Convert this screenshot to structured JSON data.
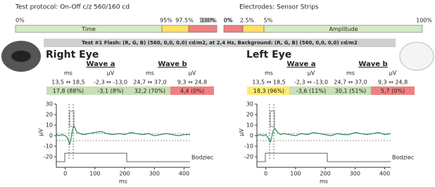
{
  "header": {
    "protocol": "Test protocol: On-Off c/z 560/160 cd",
    "electrodes": "Electrodes: Sensor Strips"
  },
  "scales": [
    {
      "start": "0%",
      "end": "100%",
      "label": "Time",
      "marks": [
        "95%",
        "97.5%",
        "100%"
      ]
    },
    {
      "start": "0%",
      "end": "100%",
      "label": "Amplitude",
      "marks": [
        "0%",
        "2.5%",
        "5%"
      ]
    }
  ],
  "test_title": "Test #1 Flash: (R, G, B) (560, 0,0, 0,0) cd/m2, at 2,4 Hz, Background: (R, G, B) (560, 0,0, 0,0) cd/m2",
  "eyes": [
    {
      "title": "Right Eye",
      "wave_a": "Wave a",
      "wave_b": "Wave b",
      "units": [
        "ms",
        "µV",
        "ms",
        "µV"
      ],
      "ranges": [
        "13,5 ↔ 18,5",
        "-2,3 ↔ -13,0",
        "24,7 ↔ 37,0",
        "9,3 ↔ 24,8"
      ],
      "results": [
        {
          "text": "17,8 (88%)",
          "color": "#c6e0b4"
        },
        {
          "text": "-3,1 (8%)",
          "color": "#c6e0b4"
        },
        {
          "text": "32,2 (70%)",
          "color": "#c6e0b4"
        },
        {
          "text": "4,4 (0%)",
          "color": "#f08080"
        }
      ],
      "plot": {
        "type": "line",
        "ylabel": "µV",
        "xlabel": "ms",
        "stimulus_label": "Bodziec",
        "color": "#2e8b57",
        "xlim": [
          -30,
          420
        ],
        "ylim": [
          -30,
          30
        ],
        "xticks": [
          0,
          100,
          200,
          300,
          400
        ],
        "yticks": [
          30,
          20,
          10,
          0,
          -10,
          -20
        ],
        "x": [
          -30,
          -20,
          -10,
          0,
          5,
          10,
          15,
          20,
          25,
          30,
          35,
          40,
          50,
          60,
          80,
          100,
          120,
          140,
          160,
          180,
          200,
          220,
          240,
          260,
          280,
          300,
          320,
          340,
          360,
          380,
          400,
          420
        ],
        "values": [
          1,
          0,
          1,
          0,
          -1,
          -4,
          -8,
          -2,
          6,
          9,
          6,
          3,
          2,
          1,
          2,
          3,
          4,
          2,
          1,
          2,
          1,
          3,
          2,
          1,
          2,
          0,
          1,
          2,
          1,
          0,
          1,
          1
        ]
      }
    },
    {
      "title": "Left Eye",
      "wave_a": "Wave a",
      "wave_b": "Wave b",
      "units": [
        "ms",
        "µV",
        "ms",
        "µV"
      ],
      "ranges": [
        "13,5 ↔ 18,5",
        "-2,3 ↔ -13,0",
        "24,7 ↔ 37,0",
        "9,3 ↔ 24,8"
      ],
      "results": [
        {
          "text": "18,3 (96%)",
          "color": "#ffeb70"
        },
        {
          "text": "-3,6 (11%)",
          "color": "#c6e0b4"
        },
        {
          "text": "30,1 (51%)",
          "color": "#c6e0b4"
        },
        {
          "text": "5,7 (0%)",
          "color": "#f08080"
        }
      ],
      "plot": {
        "type": "line",
        "ylabel": "µV",
        "xlabel": "ms",
        "stimulus_label": "Bodziec",
        "color": "#2e8b57",
        "xlim": [
          -30,
          420
        ],
        "ylim": [
          -30,
          30
        ],
        "xticks": [
          0,
          100,
          200,
          300,
          400
        ],
        "yticks": [
          30,
          20,
          10,
          0,
          -10,
          -20
        ],
        "x": [
          -30,
          -20,
          -10,
          0,
          5,
          10,
          15,
          20,
          25,
          30,
          35,
          40,
          50,
          60,
          80,
          100,
          120,
          140,
          160,
          180,
          200,
          220,
          240,
          260,
          280,
          300,
          320,
          340,
          360,
          380,
          400,
          420
        ],
        "values": [
          0,
          1,
          0,
          1,
          -1,
          -3,
          -6,
          -1,
          5,
          7,
          5,
          3,
          1,
          2,
          1,
          0,
          2,
          1,
          3,
          2,
          1,
          0,
          2,
          1,
          1,
          3,
          2,
          1,
          2,
          3,
          1,
          2
        ]
      }
    }
  ]
}
